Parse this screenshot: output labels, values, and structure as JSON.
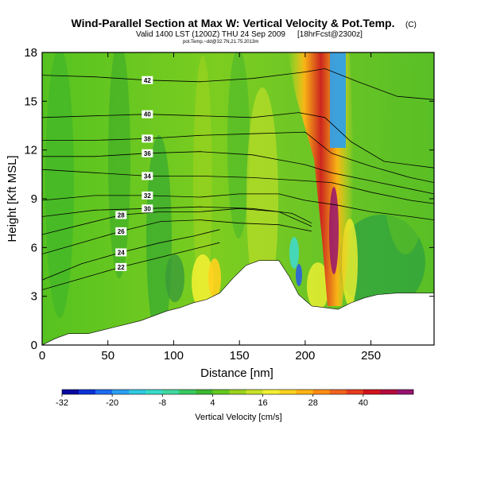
{
  "title": "Wind-Parallel Section at Max W: Vertical Velocity & Pot.Temp.",
  "copyright": "(C)",
  "subtitle_valid": "Valid 1400 LST (1200Z) THU 24 Sep 2009",
  "subtitle_forecast": "[18hrFcst@2300z]",
  "subtitle_small": "pot.Temp.~dd@32.7N,21.75.2013m",
  "chart_data": {
    "type": "heatmap",
    "xlabel": "Distance [nm]",
    "ylabel": "Height [Kft MSL]",
    "xlim": [
      0,
      298
    ],
    "ylim": [
      0,
      18
    ],
    "xticks": [
      "0",
      "50",
      "100",
      "150",
      "200",
      "250"
    ],
    "yticks": [
      "0",
      "3",
      "6",
      "9",
      "12",
      "15",
      "18"
    ],
    "colorbar": {
      "label": "Vertical Velocity [cm/s]",
      "ticks": [
        "-32",
        "-20",
        "-8",
        "4",
        "16",
        "28",
        "40"
      ],
      "range": [
        -32,
        52
      ],
      "step": 4,
      "colors": [
        "#0a0aa0",
        "#0b32d8",
        "#1e6cf0",
        "#2aa0f0",
        "#30c8e0",
        "#38dcc8",
        "#40d8a0",
        "#38c860",
        "#3cb830",
        "#64c81e",
        "#9ad21e",
        "#c8e12a",
        "#f0f032",
        "#ffd21e",
        "#ffb414",
        "#ff8c14",
        "#f0641e",
        "#e63c1e",
        "#d2141e",
        "#b40a3c",
        "#96146e"
      ]
    },
    "terrain": [
      [
        0,
        0
      ],
      [
        10,
        0.4
      ],
      [
        20,
        0.7
      ],
      [
        35,
        0.7
      ],
      [
        45,
        0.9
      ],
      [
        55,
        1.1
      ],
      [
        65,
        1.3
      ],
      [
        75,
        1.5
      ],
      [
        85,
        1.8
      ],
      [
        95,
        2.1
      ],
      [
        105,
        2.3
      ],
      [
        115,
        2.6
      ],
      [
        125,
        2.8
      ],
      [
        135,
        3.2
      ],
      [
        145,
        4.1
      ],
      [
        155,
        4.9
      ],
      [
        165,
        5.2
      ],
      [
        180,
        5.2
      ],
      [
        188,
        4.2
      ],
      [
        195,
        3.1
      ],
      [
        205,
        2.4
      ],
      [
        215,
        2.3
      ],
      [
        225,
        2.2
      ],
      [
        235,
        2.6
      ],
      [
        245,
        2.9
      ],
      [
        255,
        3.1
      ],
      [
        270,
        3.2
      ],
      [
        298,
        3.2
      ]
    ],
    "contours": [
      {
        "label": "22",
        "points": [
          [
            0,
            3.4
          ],
          [
            30,
            4.1
          ],
          [
            60,
            4.8
          ],
          [
            90,
            5.4
          ],
          [
            115,
            5.9
          ],
          [
            135,
            6.3
          ]
        ]
      },
      {
        "label": "24",
        "points": [
          [
            0,
            4.0
          ],
          [
            30,
            5.0
          ],
          [
            60,
            5.7
          ],
          [
            90,
            6.3
          ],
          [
            115,
            6.7
          ],
          [
            135,
            7.1
          ]
        ]
      },
      {
        "label": "26",
        "points": [
          [
            0,
            5.6
          ],
          [
            30,
            6.3
          ],
          [
            60,
            7.0
          ],
          [
            90,
            7.6
          ],
          [
            120,
            7.7
          ],
          [
            150,
            7.5
          ],
          [
            180,
            7.4
          ],
          [
            205,
            7.0
          ]
        ]
      },
      {
        "label": "28",
        "points": [
          [
            0,
            6.8
          ],
          [
            30,
            7.4
          ],
          [
            60,
            8.0
          ],
          [
            90,
            8.2
          ],
          [
            120,
            8.2
          ],
          [
            150,
            8.4
          ],
          [
            180,
            8.2
          ],
          [
            205,
            7.3
          ]
        ]
      },
      {
        "label": "30",
        "points": [
          [
            0,
            7.9
          ],
          [
            40,
            8.3
          ],
          [
            80,
            8.4
          ],
          [
            120,
            8.5
          ],
          [
            160,
            8.4
          ],
          [
            190,
            8.1
          ],
          [
            205,
            7.5
          ]
        ]
      },
      {
        "label": "32",
        "points": [
          [
            0,
            8.9
          ],
          [
            40,
            9.2
          ],
          [
            80,
            9.2
          ],
          [
            120,
            9.1
          ],
          [
            150,
            9.3
          ],
          [
            180,
            9.3
          ],
          [
            200,
            8.9
          ],
          [
            225,
            8.6
          ],
          [
            250,
            8.2
          ],
          [
            280,
            7.9
          ],
          [
            298,
            7.7
          ]
        ]
      },
      {
        "label": "34",
        "points": [
          [
            0,
            10.8
          ],
          [
            40,
            10.6
          ],
          [
            80,
            10.4
          ],
          [
            120,
            10.4
          ],
          [
            160,
            10.3
          ],
          [
            200,
            10.1
          ],
          [
            220,
            10.0
          ],
          [
            250,
            9.4
          ],
          [
            280,
            8.9
          ],
          [
            298,
            8.7
          ]
        ]
      },
      {
        "label": "36",
        "points": [
          [
            0,
            11.6
          ],
          [
            40,
            11.6
          ],
          [
            80,
            11.8
          ],
          [
            120,
            11.9
          ],
          [
            160,
            11.7
          ],
          [
            200,
            11.1
          ],
          [
            220,
            10.6
          ],
          [
            250,
            10.1
          ],
          [
            280,
            9.6
          ],
          [
            298,
            9.3
          ]
        ]
      },
      {
        "label": "38",
        "points": [
          [
            0,
            12.6
          ],
          [
            40,
            12.6
          ],
          [
            80,
            12.7
          ],
          [
            120,
            12.9
          ],
          [
            160,
            13.0
          ],
          [
            200,
            13.1
          ],
          [
            220,
            11.8
          ],
          [
            250,
            11.0
          ],
          [
            280,
            10.3
          ],
          [
            298,
            10.0
          ]
        ]
      },
      {
        "label": "40",
        "points": [
          [
            0,
            14.0
          ],
          [
            40,
            14.1
          ],
          [
            80,
            14.2
          ],
          [
            120,
            14.1
          ],
          [
            160,
            14.0
          ],
          [
            195,
            14.3
          ],
          [
            215,
            14.0
          ],
          [
            235,
            12.5
          ],
          [
            260,
            11.3
          ],
          [
            298,
            10.9
          ]
        ]
      },
      {
        "label": "42",
        "points": [
          [
            0,
            16.6
          ],
          [
            40,
            16.5
          ],
          [
            80,
            16.3
          ],
          [
            120,
            16.2
          ],
          [
            160,
            16.4
          ],
          [
            200,
            16.8
          ],
          [
            215,
            17.0
          ],
          [
            240,
            16.2
          ],
          [
            270,
            15.3
          ],
          [
            298,
            15.1
          ]
        ]
      }
    ]
  }
}
